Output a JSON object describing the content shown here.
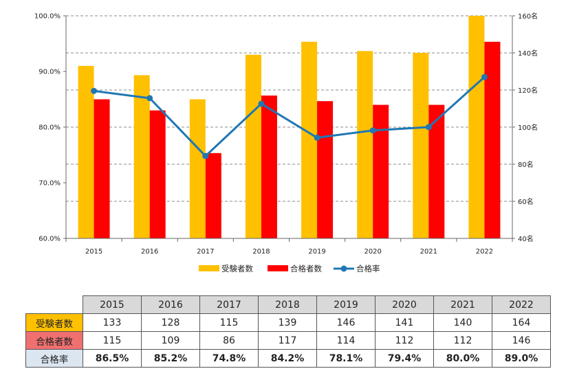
{
  "chart_data": {
    "type": "bar",
    "categories": [
      "2015",
      "2016",
      "2017",
      "2018",
      "2019",
      "2020",
      "2021",
      "2022"
    ],
    "series": [
      {
        "name": "受験者数",
        "type": "bar",
        "axis": "right",
        "color": "#ffc000",
        "values": [
          133,
          128,
          115,
          139,
          146,
          141,
          140,
          164
        ]
      },
      {
        "name": "合格者数",
        "type": "bar",
        "axis": "right",
        "color": "#ff0000",
        "values": [
          115,
          109,
          86,
          117,
          114,
          112,
          112,
          146
        ]
      },
      {
        "name": "合格率",
        "type": "line",
        "axis": "left",
        "color": "#1f77b4",
        "values": [
          86.5,
          85.2,
          74.8,
          84.2,
          78.1,
          79.4,
          80.0,
          89.0
        ]
      }
    ],
    "y_left": {
      "ylim": [
        60,
        100
      ],
      "ticks": [
        "60.0%",
        "70.0%",
        "80.0%",
        "90.0%",
        "100.0%"
      ]
    },
    "y_right": {
      "ylim": [
        40,
        160
      ],
      "ticks": [
        "40名",
        "60名",
        "80名",
        "100名",
        "120名",
        "140名",
        "160名"
      ]
    },
    "grid": true,
    "legend": "bottom-center"
  },
  "table": {
    "years": [
      "2015",
      "2016",
      "2017",
      "2018",
      "2019",
      "2020",
      "2021",
      "2022"
    ],
    "rows": [
      {
        "label": "受験者数",
        "values": [
          "133",
          "128",
          "115",
          "139",
          "146",
          "141",
          "140",
          "164"
        ]
      },
      {
        "label": "合格者数",
        "values": [
          "115",
          "109",
          "86",
          "117",
          "114",
          "112",
          "112",
          "146"
        ]
      },
      {
        "label": "合格率",
        "values": [
          "86.5%",
          "85.2%",
          "74.8%",
          "84.2%",
          "78.1%",
          "79.4%",
          "80.0%",
          "89.0%"
        ]
      }
    ]
  }
}
